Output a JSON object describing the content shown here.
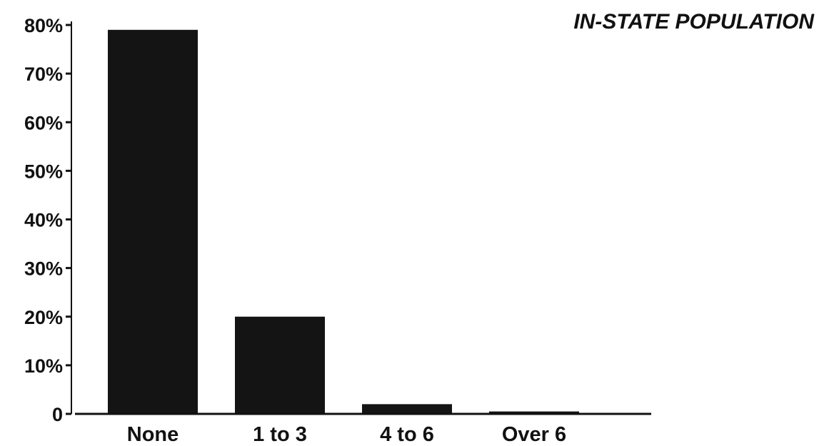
{
  "chart_data": {
    "type": "bar",
    "title": "IN-STATE POPULATION",
    "xlabel": "",
    "ylabel": "",
    "categories": [
      "None",
      "1 to 3",
      "4 to 6",
      "Over 6"
    ],
    "values": [
      79,
      20,
      2,
      0.5
    ],
    "ylim": [
      0,
      80
    ],
    "yticks": [
      0,
      10,
      20,
      30,
      40,
      50,
      60,
      70,
      80
    ],
    "ytick_labels": [
      "0",
      "10%",
      "20%",
      "30%",
      "40%",
      "50%",
      "60%",
      "70%",
      "80%"
    ],
    "grid": false,
    "legend": "none",
    "bar_color": "#141414"
  }
}
